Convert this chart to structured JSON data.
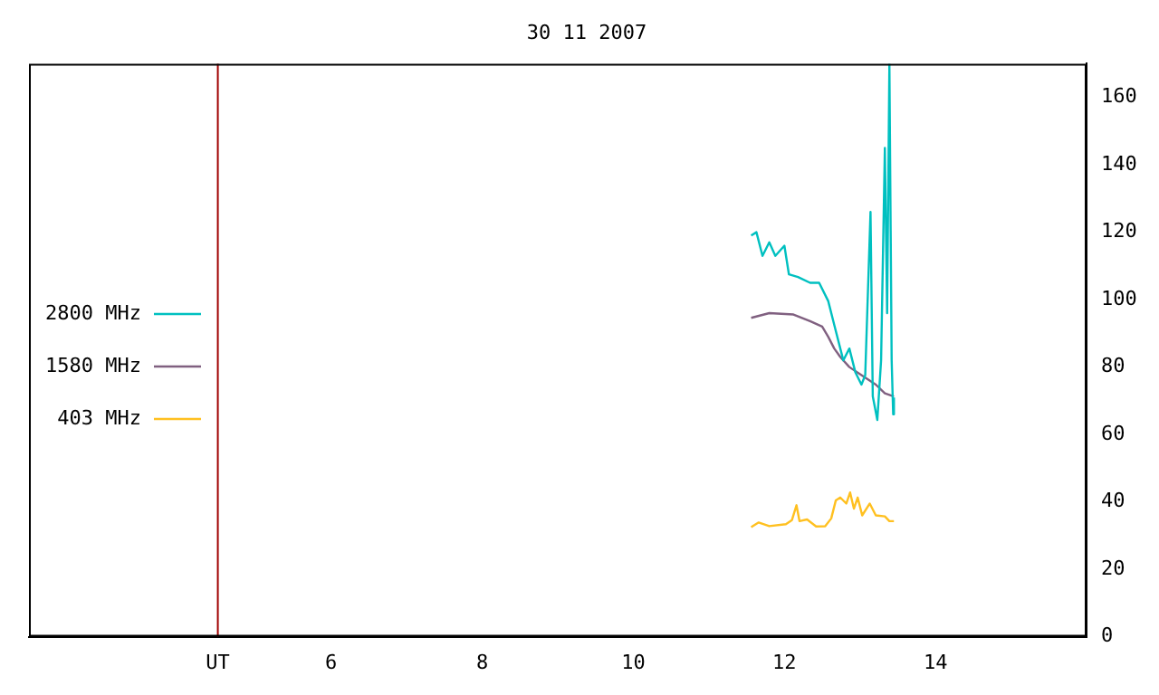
{
  "chart_data": {
    "type": "line",
    "title": "30 11 2007",
    "xlim": [
      2,
      16
    ],
    "xticks": [
      {
        "value": 4.5,
        "label": "UT"
      },
      6,
      8,
      10,
      12,
      14
    ],
    "ylim": [
      0,
      170
    ],
    "yticks": [
      0,
      20,
      40,
      60,
      80,
      100,
      120,
      140,
      160
    ],
    "grid": false,
    "legend": "left",
    "marker": "none",
    "line_style": "solid",
    "ref_lines": [
      {
        "axis": "x",
        "value": 4.5,
        "color": "#a00000"
      }
    ],
    "series": [
      {
        "name": "2800 MHz",
        "color": "#00c0c0",
        "x": [
          11.56,
          11.63,
          11.71,
          11.8,
          11.88,
          12.0,
          12.06,
          12.18,
          12.34,
          12.46,
          12.58,
          12.66,
          12.74,
          12.78,
          12.86,
          12.94,
          13.02,
          13.07,
          13.14,
          13.17,
          13.23,
          13.28,
          13.33,
          13.36,
          13.39,
          13.42,
          13.44,
          13.45
        ],
        "values": [
          119,
          120,
          113,
          117,
          113,
          116,
          107.5,
          106.7,
          105,
          105,
          99.6,
          92.5,
          85.5,
          82,
          85.5,
          78.4,
          74.8,
          77.6,
          126,
          71.3,
          64.3,
          82,
          145,
          96,
          170,
          82,
          66,
          71
        ]
      },
      {
        "name": "1580 MHz",
        "color": "#806080",
        "x": [
          11.56,
          11.8,
          12.12,
          12.34,
          12.5,
          12.58,
          12.66,
          12.74,
          12.86,
          13.02,
          13.21,
          13.33,
          13.45
        ],
        "values": [
          94.6,
          96,
          95.6,
          93.6,
          92,
          89,
          85.5,
          83,
          80,
          77.6,
          74.8,
          72.2,
          71.3
        ]
      },
      {
        "name": "403 MHz",
        "color": "#ffc020",
        "x": [
          11.56,
          11.66,
          11.8,
          12.02,
          12.1,
          12.16,
          12.2,
          12.3,
          12.42,
          12.54,
          12.62,
          12.68,
          12.74,
          12.82,
          12.87,
          12.92,
          12.97,
          13.03,
          13.13,
          13.21,
          13.33,
          13.39,
          13.45
        ],
        "values": [
          32.5,
          33.9,
          32.8,
          33.4,
          34.6,
          39,
          34.3,
          34.8,
          32.7,
          32.8,
          35.1,
          40.4,
          41.3,
          39.5,
          42.8,
          38,
          41.3,
          36,
          39.5,
          36,
          35.7,
          34.3,
          34.3
        ]
      }
    ]
  }
}
